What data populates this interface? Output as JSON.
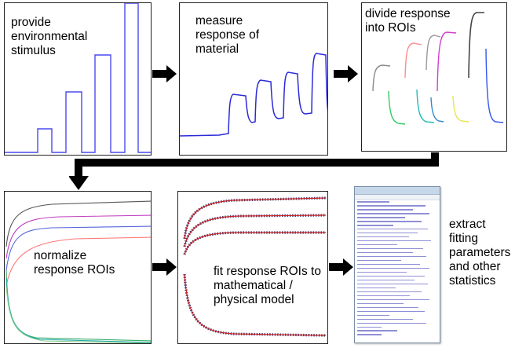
{
  "steps": {
    "stimulus": {
      "lines": [
        "provide",
        "environmental",
        "stimulus"
      ]
    },
    "measure": {
      "lines": [
        "measure",
        "response of",
        "material"
      ]
    },
    "divide": {
      "lines": [
        "divide response",
        "into ROIs"
      ]
    },
    "normalize": {
      "lines": [
        "normalize",
        "response ROIs"
      ]
    },
    "fit": {
      "lines": [
        "fit response ROIs to",
        "mathematical /",
        "physical model"
      ]
    },
    "extract": {
      "lines": [
        "extract",
        "fitting",
        "parameters",
        "and other",
        "statistics"
      ]
    }
  },
  "colors": {
    "stimulus_line": "#4a4af0",
    "measure_line": "#2a2ad8",
    "roi_colors": [
      "#8a8a8a",
      "#ff8a8a",
      "#33cc66",
      "#22bbbb",
      "#d040d0",
      "#e6e650",
      "#3355ee",
      "#444444"
    ],
    "fit_points": "#2a2a66",
    "fit_curve": "#cc2222",
    "arrow": "#000000"
  }
}
